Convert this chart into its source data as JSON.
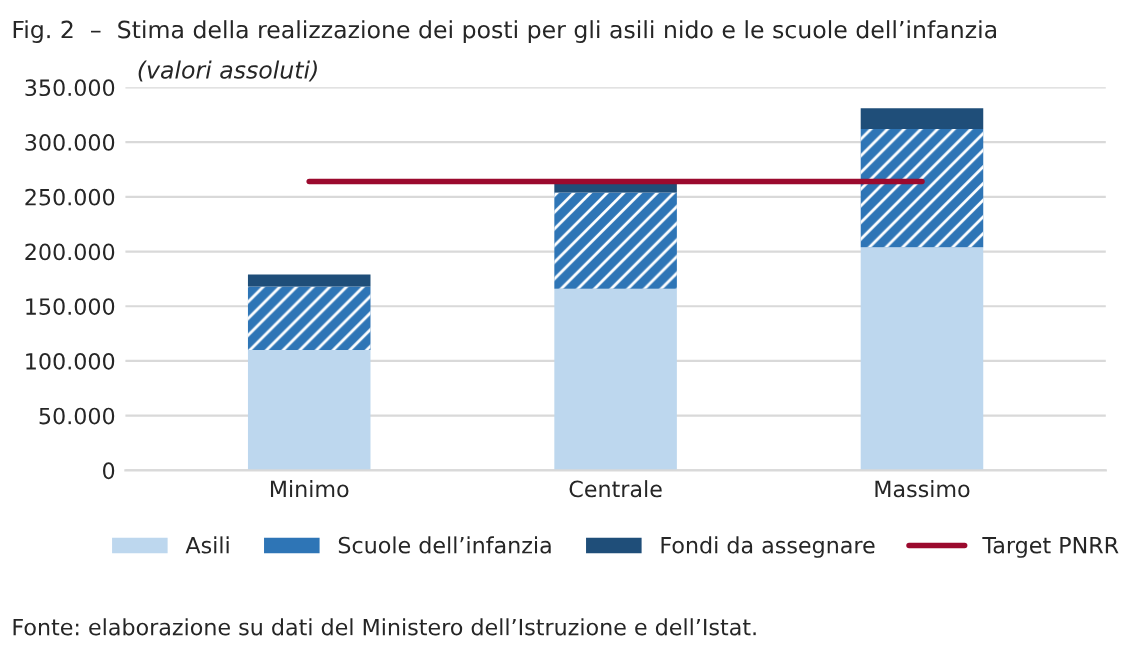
{
  "chart_data": {
    "type": "bar",
    "title": "Fig. 2  –  Stima della realizzazione dei posti per gli asili nido e le scuole dell’infanzia",
    "subtitle": "(valori assoluti)",
    "categories": [
      "Minimo",
      "Centrale",
      "Massimo"
    ],
    "stacked": true,
    "series": [
      {
        "name": "Asili",
        "color": "#bdd7ee",
        "values": [
          110000,
          166000,
          204000
        ]
      },
      {
        "name": "Scuole dell’infanzia",
        "color": "#2e75b6",
        "values": [
          58000,
          88000,
          108000
        ]
      },
      {
        "name": "Fondi da assegnare",
        "color": "#1f4e79",
        "values": [
          11000,
          11000,
          19000
        ]
      },
      {
        "name": "Target PNRR",
        "type": "line",
        "color": "#9b0a2e",
        "values": [
          264000,
          264000,
          264000
        ]
      }
    ],
    "ylim": [
      0,
      350000
    ],
    "yticks": [
      {
        "value": 0,
        "label": "0"
      },
      {
        "value": 50000,
        "label": "50.000"
      },
      {
        "value": 100000,
        "label": "100.000"
      },
      {
        "value": 150000,
        "label": "150.000"
      },
      {
        "value": 200000,
        "label": "200.000"
      },
      {
        "value": 250000,
        "label": "250.000"
      },
      {
        "value": 300000,
        "label": "300.000"
      },
      {
        "value": 350000,
        "label": "350.000"
      }
    ],
    "grid": "y",
    "legend": "bottom",
    "annotations": [
      "Fonte: elaborazione su dati del Ministero dell’Istruzione e dell’Istat."
    ]
  }
}
